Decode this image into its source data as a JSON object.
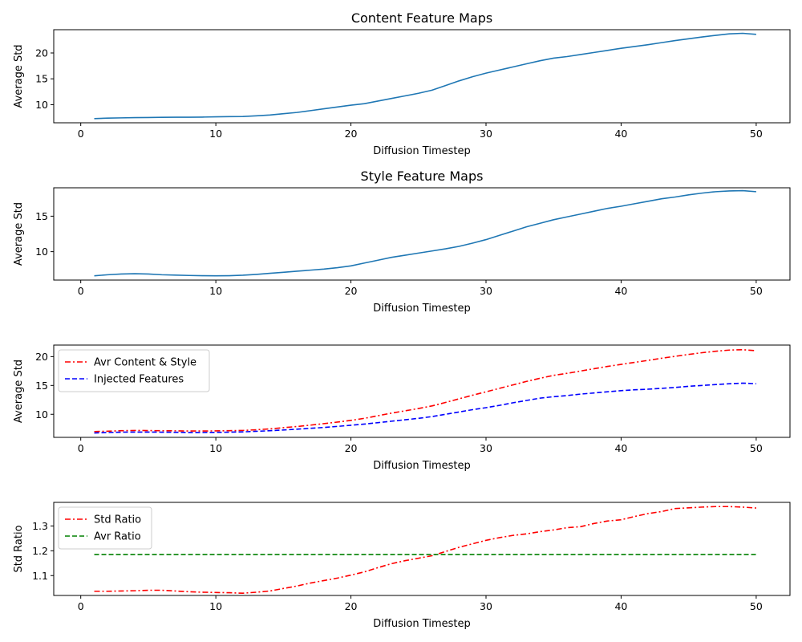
{
  "chart_data": [
    {
      "type": "line",
      "title": "Content Feature Maps",
      "xlabel": "Diffusion Timestep",
      "ylabel": "Average Std",
      "xlim": [
        -2,
        52.5
      ],
      "ylim": [
        6.5,
        24.5
      ],
      "xticks": [
        0,
        10,
        20,
        30,
        40,
        50
      ],
      "yticks": [
        10,
        15,
        20
      ],
      "legend": null,
      "series": [
        {
          "name": "",
          "color": "#1f77b4",
          "dash": "solid",
          "x": [
            1,
            2,
            3,
            4,
            5,
            6,
            7,
            8,
            9,
            10,
            11,
            12,
            13,
            14,
            15,
            16,
            17,
            18,
            19,
            20,
            21,
            22,
            23,
            24,
            25,
            26,
            27,
            28,
            29,
            30,
            31,
            32,
            33,
            34,
            35,
            36,
            37,
            38,
            39,
            40,
            41,
            42,
            43,
            44,
            45,
            46,
            47,
            48,
            49,
            50
          ],
          "values": [
            7.3,
            7.4,
            7.45,
            7.5,
            7.52,
            7.55,
            7.57,
            7.57,
            7.6,
            7.65,
            7.7,
            7.72,
            7.85,
            8.0,
            8.25,
            8.5,
            8.85,
            9.2,
            9.55,
            9.9,
            10.2,
            10.7,
            11.2,
            11.7,
            12.2,
            12.8,
            13.7,
            14.6,
            15.4,
            16.1,
            16.7,
            17.3,
            17.9,
            18.5,
            19.0,
            19.3,
            19.7,
            20.1,
            20.5,
            20.9,
            21.25,
            21.6,
            22.0,
            22.4,
            22.75,
            23.1,
            23.4,
            23.7,
            23.8,
            23.6
          ]
        }
      ]
    },
    {
      "type": "line",
      "title": "Style Feature Maps",
      "xlabel": "Diffusion Timestep",
      "ylabel": "Average Std",
      "xlim": [
        -2,
        52.5
      ],
      "ylim": [
        6.0,
        19.0
      ],
      "xticks": [
        0,
        10,
        20,
        30,
        40,
        50
      ],
      "yticks": [
        10,
        15
      ],
      "legend": null,
      "series": [
        {
          "name": "",
          "color": "#1f77b4",
          "dash": "solid",
          "x": [
            1,
            2,
            3,
            4,
            5,
            6,
            7,
            8,
            9,
            10,
            11,
            12,
            13,
            14,
            15,
            16,
            17,
            18,
            19,
            20,
            21,
            22,
            23,
            24,
            25,
            26,
            27,
            28,
            29,
            30,
            31,
            32,
            33,
            34,
            35,
            36,
            37,
            38,
            39,
            40,
            41,
            42,
            43,
            44,
            45,
            46,
            47,
            48,
            49,
            50
          ],
          "values": [
            6.6,
            6.75,
            6.85,
            6.9,
            6.85,
            6.75,
            6.7,
            6.65,
            6.62,
            6.6,
            6.62,
            6.68,
            6.8,
            6.95,
            7.1,
            7.25,
            7.4,
            7.55,
            7.75,
            8.0,
            8.4,
            8.8,
            9.2,
            9.5,
            9.8,
            10.1,
            10.4,
            10.75,
            11.2,
            11.7,
            12.3,
            12.9,
            13.5,
            14.0,
            14.5,
            14.9,
            15.3,
            15.7,
            16.1,
            16.4,
            16.75,
            17.1,
            17.45,
            17.7,
            18.0,
            18.25,
            18.45,
            18.55,
            18.6,
            18.45
          ]
        }
      ]
    },
    {
      "type": "line",
      "title": "",
      "xlabel": "Diffusion Timestep",
      "ylabel": "Average Std",
      "xlim": [
        -2,
        52.5
      ],
      "ylim": [
        6.0,
        22.0
      ],
      "xticks": [
        0,
        10,
        20,
        30,
        40,
        50
      ],
      "yticks": [
        10,
        15,
        20
      ],
      "legend": "upper-left",
      "series": [
        {
          "name": "Avr Content & Style",
          "color": "#ff0000",
          "dash": "dashdot",
          "x": [
            1,
            2,
            3,
            4,
            5,
            6,
            7,
            8,
            9,
            10,
            11,
            12,
            13,
            14,
            15,
            16,
            17,
            18,
            19,
            20,
            21,
            22,
            23,
            24,
            25,
            26,
            27,
            28,
            29,
            30,
            31,
            32,
            33,
            34,
            35,
            36,
            37,
            38,
            39,
            40,
            41,
            42,
            43,
            44,
            45,
            46,
            47,
            48,
            49,
            50
          ],
          "values": [
            7.0,
            7.07,
            7.15,
            7.2,
            7.18,
            7.15,
            7.13,
            7.1,
            7.1,
            7.12,
            7.16,
            7.2,
            7.32,
            7.47,
            7.68,
            7.88,
            8.12,
            8.38,
            8.65,
            8.95,
            9.3,
            9.75,
            10.2,
            10.6,
            11.0,
            11.45,
            12.05,
            12.68,
            13.3,
            13.9,
            14.5,
            15.1,
            15.7,
            16.25,
            16.75,
            17.1,
            17.5,
            17.9,
            18.3,
            18.65,
            19.0,
            19.35,
            19.72,
            20.05,
            20.38,
            20.68,
            20.93,
            21.13,
            21.2,
            21.03
          ]
        },
        {
          "name": "Injected Features",
          "color": "#0000ff",
          "dash": "dashed",
          "x": [
            1,
            2,
            3,
            4,
            5,
            6,
            7,
            8,
            9,
            10,
            11,
            12,
            13,
            14,
            15,
            16,
            17,
            18,
            19,
            20,
            21,
            22,
            23,
            24,
            25,
            26,
            27,
            28,
            29,
            30,
            31,
            32,
            33,
            34,
            35,
            36,
            37,
            38,
            39,
            40,
            41,
            42,
            43,
            44,
            45,
            46,
            47,
            48,
            49,
            50
          ],
          "values": [
            6.75,
            6.85,
            6.9,
            6.92,
            6.92,
            6.9,
            6.88,
            6.85,
            6.85,
            6.87,
            6.9,
            6.95,
            7.05,
            7.15,
            7.28,
            7.42,
            7.57,
            7.72,
            7.9,
            8.1,
            8.3,
            8.55,
            8.8,
            9.05,
            9.3,
            9.6,
            10.0,
            10.4,
            10.8,
            11.15,
            11.55,
            12.0,
            12.4,
            12.8,
            13.05,
            13.25,
            13.5,
            13.7,
            13.9,
            14.1,
            14.25,
            14.35,
            14.5,
            14.65,
            14.85,
            15.0,
            15.15,
            15.3,
            15.4,
            15.3
          ]
        }
      ]
    },
    {
      "type": "line",
      "title": "",
      "xlabel": "Diffusion Timestep",
      "ylabel": "Std Ratio",
      "xlim": [
        -2,
        52.5
      ],
      "ylim": [
        1.02,
        1.395
      ],
      "xticks": [
        0,
        10,
        20,
        30,
        40,
        50
      ],
      "yticks": [
        1.1,
        1.2,
        1.3
      ],
      "legend": "upper-left",
      "series": [
        {
          "name": "Std Ratio",
          "color": "#ff0000",
          "dash": "dashdot",
          "x": [
            1,
            2,
            3,
            4,
            5,
            6,
            7,
            8,
            9,
            10,
            11,
            12,
            13,
            14,
            15,
            16,
            17,
            18,
            19,
            20,
            21,
            22,
            23,
            24,
            25,
            26,
            27,
            28,
            29,
            30,
            31,
            32,
            33,
            34,
            35,
            36,
            37,
            38,
            39,
            40,
            41,
            42,
            43,
            44,
            45,
            46,
            47,
            48,
            49,
            50
          ],
          "values": [
            1.037,
            1.037,
            1.038,
            1.039,
            1.041,
            1.041,
            1.038,
            1.035,
            1.033,
            1.032,
            1.031,
            1.029,
            1.033,
            1.038,
            1.048,
            1.058,
            1.07,
            1.08,
            1.09,
            1.102,
            1.115,
            1.132,
            1.148,
            1.16,
            1.17,
            1.18,
            1.197,
            1.214,
            1.228,
            1.242,
            1.253,
            1.262,
            1.268,
            1.277,
            1.284,
            1.293,
            1.297,
            1.31,
            1.32,
            1.325,
            1.338,
            1.35,
            1.358,
            1.37,
            1.373,
            1.376,
            1.378,
            1.378,
            1.376,
            1.372
          ]
        },
        {
          "name": "Avr Ratio",
          "color": "#008000",
          "dash": "dashed",
          "x": [
            1,
            50
          ],
          "values": [
            1.185,
            1.185
          ]
        }
      ]
    }
  ]
}
